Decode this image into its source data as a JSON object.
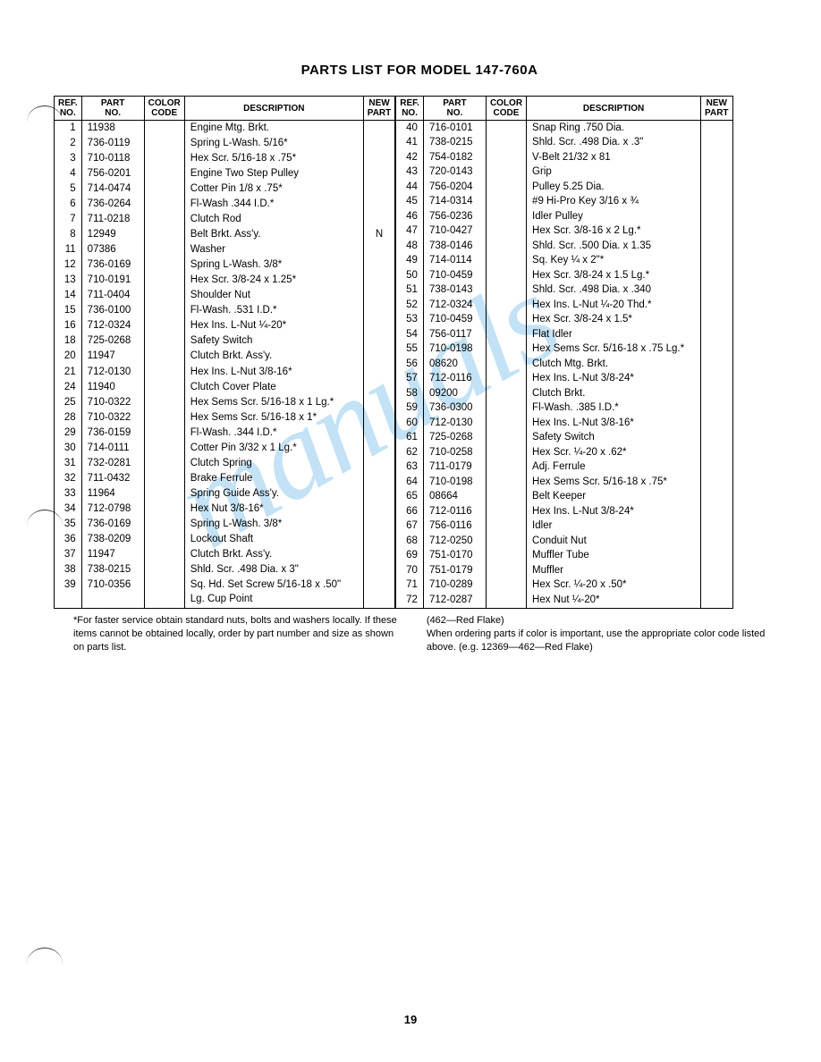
{
  "title": "PARTS LIST FOR MODEL 147-760A",
  "headers": {
    "ref": "REF.\nNO.",
    "part": "PART\nNO.",
    "color": "COLOR\nCODE",
    "desc": "DESCRIPTION",
    "new": "NEW\nPART"
  },
  "left_rows": [
    {
      "ref": "1",
      "part": "11938",
      "color": "",
      "desc": "Engine Mtg. Brkt.",
      "new": ""
    },
    {
      "ref": "2",
      "part": "736-0119",
      "color": "",
      "desc": "Spring L-Wash. 5/16*",
      "new": ""
    },
    {
      "ref": "3",
      "part": "710-0118",
      "color": "",
      "desc": "Hex Scr. 5/16-18 x .75*",
      "new": ""
    },
    {
      "ref": "4",
      "part": "756-0201",
      "color": "",
      "desc": "Engine Two Step Pulley",
      "new": ""
    },
    {
      "ref": "5",
      "part": "714-0474",
      "color": "",
      "desc": "Cotter Pin 1/8 x .75*",
      "new": ""
    },
    {
      "ref": "6",
      "part": "736-0264",
      "color": "",
      "desc": "Fl-Wash .344 I.D.*",
      "new": ""
    },
    {
      "ref": "7",
      "part": "711-0218",
      "color": "",
      "desc": "Clutch Rod",
      "new": ""
    },
    {
      "ref": "8",
      "part": "12949",
      "color": "",
      "desc": "Belt Brkt. Ass'y.",
      "new": "N"
    },
    {
      "ref": "11",
      "part": "07386",
      "color": "",
      "desc": "Washer",
      "new": ""
    },
    {
      "ref": "12",
      "part": "736-0169",
      "color": "",
      "desc": "Spring L-Wash. 3/8*",
      "new": ""
    },
    {
      "ref": "13",
      "part": "710-0191",
      "color": "",
      "desc": "Hex Scr. 3/8-24 x 1.25*",
      "new": ""
    },
    {
      "ref": "14",
      "part": "711-0404",
      "color": "",
      "desc": "Shoulder Nut",
      "new": ""
    },
    {
      "ref": "15",
      "part": "736-0100",
      "color": "",
      "desc": "Fl-Wash. .531 I.D.*",
      "new": ""
    },
    {
      "ref": "16",
      "part": "712-0324",
      "color": "",
      "desc": "Hex Ins. L-Nut ¼-20*",
      "new": ""
    },
    {
      "ref": "18",
      "part": "725-0268",
      "color": "",
      "desc": "Safety Switch",
      "new": ""
    },
    {
      "ref": "20",
      "part": "11947",
      "color": "",
      "desc": "Clutch Brkt. Ass'y.",
      "new": ""
    },
    {
      "ref": "21",
      "part": "712-0130",
      "color": "",
      "desc": "Hex Ins. L-Nut 3/8-16*",
      "new": ""
    },
    {
      "ref": "24",
      "part": "11940",
      "color": "",
      "desc": "Clutch Cover Plate",
      "new": ""
    },
    {
      "ref": "25",
      "part": "710-0322",
      "color": "",
      "desc": "Hex Sems Scr. 5/16-18 x 1 Lg.*",
      "new": ""
    },
    {
      "ref": "28",
      "part": "710-0322",
      "color": "",
      "desc": "Hex Sems Scr. 5/16-18 x 1*",
      "new": ""
    },
    {
      "ref": "29",
      "part": "736-0159",
      "color": "",
      "desc": "Fl-Wash. .344 I.D.*",
      "new": ""
    },
    {
      "ref": "30",
      "part": "714-0111",
      "color": "",
      "desc": "Cotter Pin 3/32 x 1 Lg.*",
      "new": ""
    },
    {
      "ref": "31",
      "part": "732-0281",
      "color": "",
      "desc": "Clutch Spring",
      "new": ""
    },
    {
      "ref": "32",
      "part": "711-0432",
      "color": "",
      "desc": "Brake Ferrule",
      "new": ""
    },
    {
      "ref": "33",
      "part": "11964",
      "color": "",
      "desc": "Spring Guide Ass'y.",
      "new": ""
    },
    {
      "ref": "34",
      "part": "712-0798",
      "color": "",
      "desc": "Hex Nut 3/8-16*",
      "new": ""
    },
    {
      "ref": "35",
      "part": "736-0169",
      "color": "",
      "desc": "Spring L-Wash. 3/8*",
      "new": ""
    },
    {
      "ref": "36",
      "part": "738-0209",
      "color": "",
      "desc": "Lockout Shaft",
      "new": ""
    },
    {
      "ref": "37",
      "part": "11947",
      "color": "",
      "desc": "Clutch Brkt. Ass'y.",
      "new": ""
    },
    {
      "ref": "38",
      "part": "738-0215",
      "color": "",
      "desc": "Shld. Scr. .498 Dia. x 3\"",
      "new": ""
    },
    {
      "ref": "39",
      "part": "710-0356",
      "color": "",
      "desc": "Sq. Hd. Set Screw 5/16-18 x .50\" Lg. Cup Point",
      "new": ""
    }
  ],
  "right_rows": [
    {
      "ref": "40",
      "part": "716-0101",
      "color": "",
      "desc": "Snap Ring .750 Dia.",
      "new": ""
    },
    {
      "ref": "41",
      "part": "738-0215",
      "color": "",
      "desc": "Shld. Scr. .498 Dia. x .3\"",
      "new": ""
    },
    {
      "ref": "42",
      "part": "754-0182",
      "color": "",
      "desc": "V-Belt 21/32 x 81",
      "new": ""
    },
    {
      "ref": "43",
      "part": "720-0143",
      "color": "",
      "desc": "Grip",
      "new": ""
    },
    {
      "ref": "44",
      "part": "756-0204",
      "color": "",
      "desc": "Pulley 5.25 Dia.",
      "new": ""
    },
    {
      "ref": "45",
      "part": "714-0314",
      "color": "",
      "desc": "#9 Hi-Pro Key 3/16 x ¾",
      "new": ""
    },
    {
      "ref": "46",
      "part": "756-0236",
      "color": "",
      "desc": "Idler Pulley",
      "new": ""
    },
    {
      "ref": "47",
      "part": "710-0427",
      "color": "",
      "desc": "Hex Scr. 3/8-16 x 2 Lg.*",
      "new": ""
    },
    {
      "ref": "48",
      "part": "738-0146",
      "color": "",
      "desc": "Shld. Scr. .500 Dia. x 1.35",
      "new": ""
    },
    {
      "ref": "49",
      "part": "714-0114",
      "color": "",
      "desc": "Sq. Key ¼ x 2\"*",
      "new": ""
    },
    {
      "ref": "50",
      "part": "710-0459",
      "color": "",
      "desc": "Hex Scr. 3/8-24 x 1.5 Lg.*",
      "new": ""
    },
    {
      "ref": "51",
      "part": "738-0143",
      "color": "",
      "desc": "Shld. Scr. .498 Dia. x .340",
      "new": ""
    },
    {
      "ref": "52",
      "part": "712-0324",
      "color": "",
      "desc": "Hex Ins. L-Nut ¼-20 Thd.*",
      "new": ""
    },
    {
      "ref": "53",
      "part": "710-0459",
      "color": "",
      "desc": "Hex Scr. 3/8-24 x 1.5*",
      "new": ""
    },
    {
      "ref": "54",
      "part": "756-0117",
      "color": "",
      "desc": "Flat Idler",
      "new": ""
    },
    {
      "ref": "55",
      "part": "710-0198",
      "color": "",
      "desc": "Hex Sems Scr. 5/16-18 x .75 Lg.*",
      "new": ""
    },
    {
      "ref": "56",
      "part": "08620",
      "color": "",
      "desc": "Clutch Mtg. Brkt.",
      "new": ""
    },
    {
      "ref": "57",
      "part": "712-0116",
      "color": "",
      "desc": "Hex Ins. L-Nut 3/8-24*",
      "new": ""
    },
    {
      "ref": "58",
      "part": "09200",
      "color": "",
      "desc": "Clutch Brkt.",
      "new": ""
    },
    {
      "ref": "59",
      "part": "736-0300",
      "color": "",
      "desc": "Fl-Wash. .385 I.D.*",
      "new": ""
    },
    {
      "ref": "60",
      "part": "712-0130",
      "color": "",
      "desc": "Hex Ins. L-Nut 3/8-16*",
      "new": ""
    },
    {
      "ref": "61",
      "part": "725-0268",
      "color": "",
      "desc": "Safety Switch",
      "new": ""
    },
    {
      "ref": "62",
      "part": "710-0258",
      "color": "",
      "desc": "Hex Scr. ¼-20 x .62*",
      "new": ""
    },
    {
      "ref": "63",
      "part": "711-0179",
      "color": "",
      "desc": "Adj. Ferrule",
      "new": ""
    },
    {
      "ref": "64",
      "part": "710-0198",
      "color": "",
      "desc": "Hex Sems Scr. 5/16-18 x .75*",
      "new": ""
    },
    {
      "ref": "65",
      "part": "08664",
      "color": "",
      "desc": "Belt Keeper",
      "new": ""
    },
    {
      "ref": "66",
      "part": "712-0116",
      "color": "",
      "desc": "Hex Ins. L-Nut 3/8-24*",
      "new": ""
    },
    {
      "ref": "67",
      "part": "756-0116",
      "color": "",
      "desc": "Idler",
      "new": ""
    },
    {
      "ref": "68",
      "part": "712-0250",
      "color": "",
      "desc": "Conduit Nut",
      "new": ""
    },
    {
      "ref": "69",
      "part": "751-0170",
      "color": "",
      "desc": "Muffler Tube",
      "new": ""
    },
    {
      "ref": "70",
      "part": "751-0179",
      "color": "",
      "desc": "Muffler",
      "new": ""
    },
    {
      "ref": "71",
      "part": "710-0289",
      "color": "",
      "desc": "Hex Scr. ¼-20 x .50*",
      "new": ""
    },
    {
      "ref": "72",
      "part": "712-0287",
      "color": "",
      "desc": "Hex Nut ¼-20*",
      "new": ""
    }
  ],
  "footnote_left": "*For faster service obtain standard nuts, bolts and washers locally. If these items cannot be obtained locally, order by part number and size as shown on parts list.",
  "footnote_right_1": "(462—Red Flake)",
  "footnote_right_2": "When ordering parts if color is important, use the appropriate color code listed above. (e.g. 12369—462—Red Flake)",
  "page_number": "19",
  "watermark": "manuals"
}
